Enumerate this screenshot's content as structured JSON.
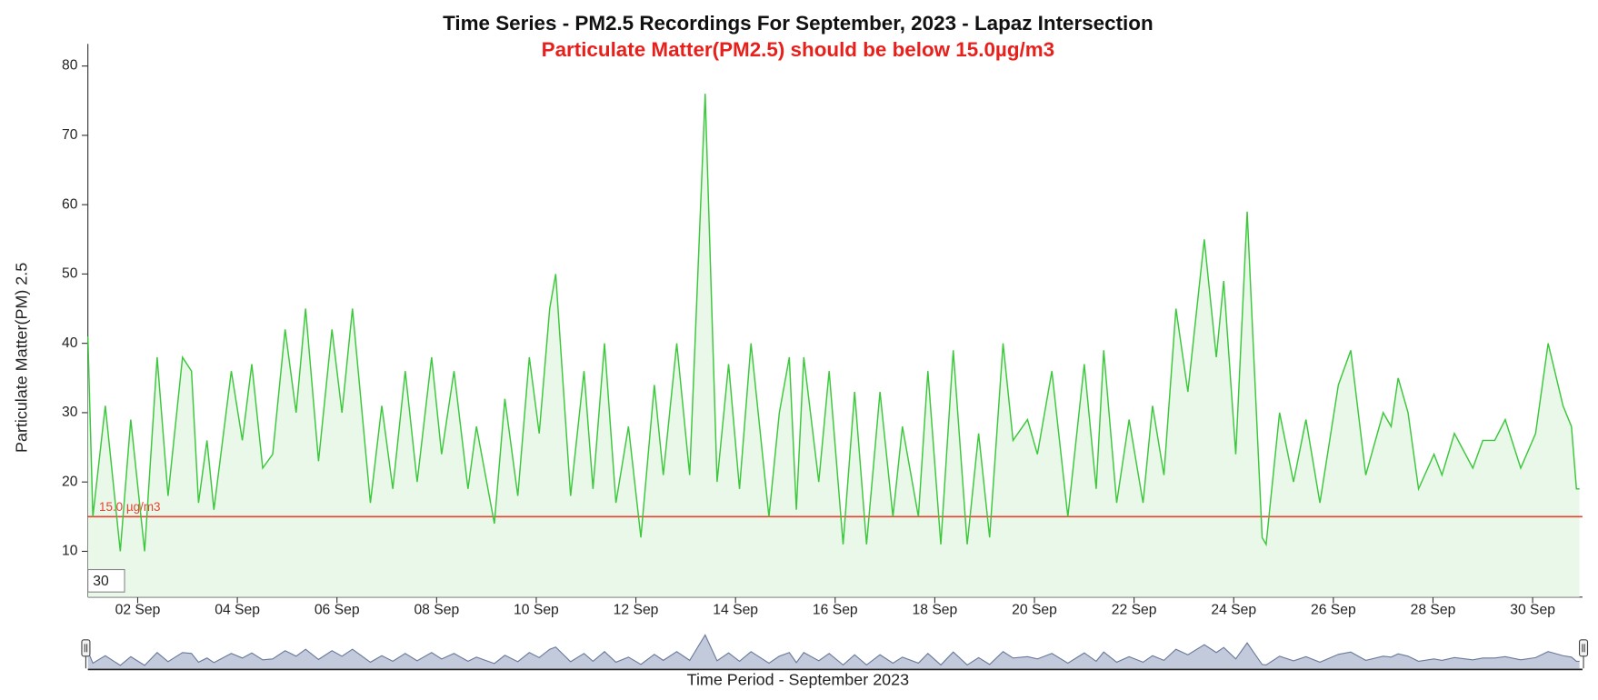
{
  "chart_data": {
    "type": "line",
    "title": "Time Series - PM2.5 Recordings For September, 2023 - Lapaz Intersection",
    "subtitle": "Particulate Matter(PM2.5) should be below 15.0µg/m3",
    "y_label": "Particulate Matter(PM) 2.5",
    "x_label": "Time Period - September 2023",
    "zoom_input": "30",
    "threshold": {
      "value": 15,
      "label": "15.0 µg/m3",
      "color": "#e8412f"
    },
    "color": "#3cc83c",
    "fill": "#eaf8ea",
    "xlim": [
      1,
      31
    ],
    "ylim": [
      3.4,
      83.2
    ],
    "yticks": [
      10,
      20,
      30,
      40,
      50,
      60,
      70,
      80
    ],
    "xticks": [
      {
        "value": 2,
        "label": "02 Sep"
      },
      {
        "value": 4,
        "label": "04 Sep"
      },
      {
        "value": 6,
        "label": "06 Sep"
      },
      {
        "value": 8,
        "label": "08 Sep"
      },
      {
        "value": 10,
        "label": "10 Sep"
      },
      {
        "value": 12,
        "label": "12 Sep"
      },
      {
        "value": 14,
        "label": "14 Sep"
      },
      {
        "value": 16,
        "label": "16 Sep"
      },
      {
        "value": 18,
        "label": "18 Sep"
      },
      {
        "value": 20,
        "label": "20 Sep"
      },
      {
        "value": 22,
        "label": "22 Sep"
      },
      {
        "value": 24,
        "label": "24 Sep"
      },
      {
        "value": 26,
        "label": "26 Sep"
      },
      {
        "value": 28,
        "label": "28 Sep"
      },
      {
        "value": 30,
        "label": "30 Sep"
      }
    ],
    "x": [
      1.0,
      1.1,
      1.35,
      1.65,
      1.86,
      2.14,
      2.39,
      2.61,
      2.9,
      3.08,
      3.22,
      3.39,
      3.53,
      3.88,
      4.1,
      4.29,
      4.51,
      4.71,
      4.96,
      5.18,
      5.37,
      5.63,
      5.9,
      6.1,
      6.31,
      6.67,
      6.9,
      7.12,
      7.37,
      7.61,
      7.9,
      8.1,
      8.35,
      8.63,
      8.8,
      9.16,
      9.37,
      9.63,
      9.86,
      10.06,
      10.27,
      10.39,
      10.69,
      10.96,
      11.14,
      11.37,
      11.6,
      11.85,
      12.1,
      12.37,
      12.55,
      12.82,
      13.08,
      13.39,
      13.63,
      13.86,
      14.08,
      14.31,
      14.67,
      14.88,
      15.08,
      15.22,
      15.37,
      15.67,
      15.88,
      16.16,
      16.39,
      16.63,
      16.9,
      17.16,
      17.35,
      17.67,
      17.86,
      18.12,
      18.37,
      18.65,
      18.88,
      19.1,
      19.37,
      19.57,
      19.86,
      20.06,
      20.35,
      20.67,
      21.0,
      21.24,
      21.39,
      21.65,
      21.9,
      22.18,
      22.37,
      22.6,
      22.84,
      23.08,
      23.41,
      23.65,
      23.8,
      24.04,
      24.27,
      24.39,
      24.57,
      24.65,
      24.92,
      25.2,
      25.45,
      25.73,
      26.1,
      26.35,
      26.65,
      27.0,
      27.16,
      27.3,
      27.5,
      27.71,
      28.02,
      28.18,
      28.43,
      28.8,
      29.0,
      29.24,
      29.45,
      29.76,
      30.06,
      30.31,
      30.61,
      30.78,
      30.88,
      30.94
    ],
    "values": [
      41,
      15,
      31,
      10,
      29,
      10,
      38,
      18,
      38,
      36,
      17,
      26,
      16,
      36,
      26,
      37,
      22,
      24,
      42,
      30,
      45,
      23,
      42,
      30,
      45,
      17,
      31,
      19,
      36,
      20,
      38,
      24,
      36,
      19,
      28,
      14,
      32,
      18,
      38,
      27,
      45,
      50,
      18,
      36,
      19,
      40,
      17,
      28,
      12,
      34,
      21,
      40,
      21,
      76,
      20,
      37,
      19,
      40,
      15,
      30,
      38,
      16,
      38,
      20,
      36,
      11,
      33,
      11,
      33,
      15,
      28,
      15,
      36,
      11,
      39,
      11,
      27,
      12,
      40,
      26,
      29,
      24,
      36,
      15,
      37,
      19,
      39,
      17,
      29,
      17,
      31,
      21,
      45,
      33,
      55,
      38,
      49,
      24,
      59,
      40,
      12,
      11,
      30,
      20,
      29,
      17,
      34,
      39,
      21,
      30,
      28,
      35,
      30,
      19,
      24,
      21,
      27,
      22,
      26,
      26,
      29,
      22,
      27,
      40,
      31,
      28,
      19,
      19
    ]
  }
}
